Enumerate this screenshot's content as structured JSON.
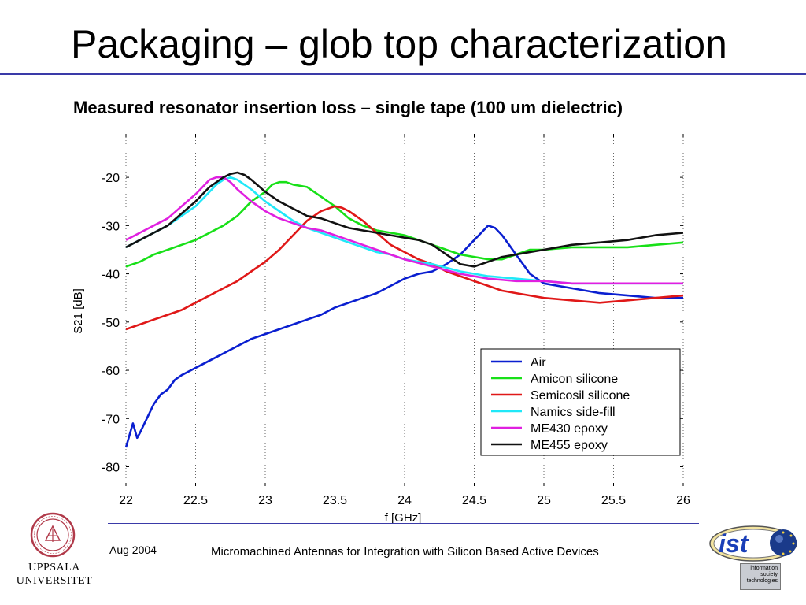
{
  "slide": {
    "title": "Packaging – glob top characterization",
    "subtitle": "Measured resonator insertion loss – single tape (100 um dielectric)",
    "footer_date": "Aug 2004",
    "footer_text": "Micromachined Antennas for Integration with Silicon Based Active Devices",
    "university_line1": "UPPSALA",
    "university_line2": "UNIVERSITET",
    "ist_text": "ist",
    "ist_sub": [
      "information",
      "society",
      "technologies"
    ],
    "accent_color": "#3a3aa8"
  },
  "chart_data": {
    "type": "line",
    "xlabel": "f [GHz]",
    "ylabel": "S21 [dB]",
    "xlim": [
      22,
      26
    ],
    "ylim": [
      -84,
      -11
    ],
    "x_ticks": [
      22,
      22.5,
      23,
      23.5,
      24,
      24.5,
      25,
      25.5,
      26
    ],
    "x_tick_labels": [
      "22",
      "22.5",
      "23",
      "23.5",
      "24",
      "24.5",
      "25",
      "25.5",
      "26"
    ],
    "y_ticks": [
      -20,
      -30,
      -40,
      -50,
      -60,
      -70,
      -80
    ],
    "y_tick_labels": [
      "-20",
      "-30",
      "-40",
      "-50",
      "-60",
      "-70",
      "-80"
    ],
    "grid": true,
    "grid_axis": "x",
    "legend_position": "lower-right",
    "series": [
      {
        "name": "Air",
        "color": "#0a1fd0",
        "x": [
          22,
          22.03,
          22.05,
          22.08,
          22.1,
          22.15,
          22.2,
          22.25,
          22.3,
          22.35,
          22.4,
          22.5,
          22.6,
          22.7,
          22.8,
          22.9,
          23,
          23.1,
          23.2,
          23.3,
          23.4,
          23.5,
          23.6,
          23.7,
          23.8,
          23.9,
          24,
          24.1,
          24.2,
          24.3,
          24.4,
          24.5,
          24.55,
          24.6,
          24.65,
          24.7,
          24.75,
          24.8,
          24.85,
          24.9,
          25,
          25.2,
          25.4,
          25.6,
          25.8,
          26
        ],
        "y": [
          -76,
          -73,
          -71,
          -74,
          -73,
          -70,
          -67,
          -65,
          -64,
          -62,
          -61,
          -59.5,
          -58,
          -56.5,
          -55,
          -53.5,
          -52.5,
          -51.5,
          -50.5,
          -49.5,
          -48.5,
          -47,
          -46,
          -45,
          -44,
          -42.5,
          -41,
          -40,
          -39.5,
          -38,
          -36,
          -33,
          -31.5,
          -30,
          -30.5,
          -32,
          -34,
          -36,
          -38,
          -40,
          -42,
          -43,
          -44,
          -44.5,
          -45,
          -45
        ]
      },
      {
        "name": "Amicon silicone",
        "color": "#18e018",
        "x": [
          22,
          22.1,
          22.2,
          22.3,
          22.4,
          22.5,
          22.6,
          22.7,
          22.8,
          22.9,
          23,
          23.05,
          23.1,
          23.15,
          23.2,
          23.3,
          23.4,
          23.5,
          23.6,
          23.7,
          23.8,
          23.9,
          24,
          24.1,
          24.2,
          24.3,
          24.4,
          24.5,
          24.6,
          24.7,
          24.8,
          24.9,
          25,
          25.2,
          25.4,
          25.6,
          25.8,
          26
        ],
        "y": [
          -38.5,
          -37.5,
          -36,
          -35,
          -34,
          -33,
          -31.5,
          -30,
          -28,
          -25,
          -23,
          -21.5,
          -21,
          -21,
          -21.5,
          -22,
          -24,
          -26,
          -28.5,
          -30,
          -31,
          -31.5,
          -32,
          -33,
          -34,
          -35,
          -36,
          -36.5,
          -37,
          -37,
          -36,
          -35,
          -35,
          -34.5,
          -34.5,
          -34.5,
          -34,
          -33.5
        ]
      },
      {
        "name": "Semicosil silicone",
        "color": "#e01818",
        "x": [
          22,
          22.1,
          22.2,
          22.3,
          22.4,
          22.5,
          22.6,
          22.7,
          22.8,
          22.9,
          23,
          23.1,
          23.2,
          23.3,
          23.4,
          23.5,
          23.55,
          23.6,
          23.7,
          23.8,
          23.9,
          24,
          24.1,
          24.2,
          24.3,
          24.4,
          24.5,
          24.6,
          24.7,
          24.8,
          24.9,
          25,
          25.2,
          25.4,
          25.6,
          25.8,
          26
        ],
        "y": [
          -51.5,
          -50.5,
          -49.5,
          -48.5,
          -47.5,
          -46,
          -44.5,
          -43,
          -41.5,
          -39.5,
          -37.5,
          -35,
          -32,
          -29,
          -27,
          -26,
          -26.3,
          -27,
          -29,
          -31.5,
          -34,
          -35.5,
          -37,
          -38,
          -39.5,
          -40.5,
          -41.5,
          -42.5,
          -43.5,
          -44,
          -44.5,
          -45,
          -45.5,
          -46,
          -45.5,
          -45,
          -44.5
        ]
      },
      {
        "name": "Namics side-fill",
        "color": "#20e8f8",
        "x": [
          22,
          22.1,
          22.2,
          22.3,
          22.4,
          22.5,
          22.55,
          22.6,
          22.65,
          22.7,
          22.75,
          22.8,
          22.9,
          23,
          23.1,
          23.2,
          23.3,
          23.4,
          23.5,
          23.6,
          23.7,
          23.8,
          23.9,
          24,
          24.2,
          24.4,
          24.6,
          24.8,
          25,
          25.2,
          25.4,
          25.6,
          25.8,
          26
        ],
        "y": [
          -34.5,
          -33,
          -31.5,
          -30,
          -28,
          -26,
          -24.5,
          -23,
          -21.5,
          -20.5,
          -20,
          -20.5,
          -22.5,
          -25,
          -27,
          -29,
          -30.5,
          -31.5,
          -32.5,
          -33.5,
          -34.5,
          -35.5,
          -36,
          -37,
          -38,
          -39.5,
          -40.5,
          -41,
          -41.5,
          -42,
          -42,
          -42,
          -42,
          -42
        ]
      },
      {
        "name": "ME430 epoxy",
        "color": "#e020e0",
        "x": [
          22,
          22.1,
          22.2,
          22.3,
          22.4,
          22.5,
          22.55,
          22.6,
          22.65,
          22.7,
          22.75,
          22.8,
          22.9,
          23,
          23.1,
          23.2,
          23.3,
          23.4,
          23.5,
          23.6,
          23.7,
          23.8,
          23.9,
          24,
          24.2,
          24.4,
          24.6,
          24.8,
          25,
          25.2,
          25.4,
          25.6,
          25.8,
          26
        ],
        "y": [
          -33,
          -31.5,
          -30,
          -28.5,
          -26,
          -23.5,
          -22,
          -20.5,
          -20,
          -20,
          -21,
          -22.5,
          -25,
          -27,
          -28.5,
          -29.5,
          -30.5,
          -31,
          -32,
          -33,
          -34,
          -35,
          -36,
          -37,
          -38.5,
          -40,
          -41,
          -41.5,
          -41.5,
          -42,
          -42,
          -42,
          -42,
          -42
        ]
      },
      {
        "name": "ME455 epoxy",
        "color": "#111111",
        "x": [
          22,
          22.1,
          22.2,
          22.3,
          22.4,
          22.5,
          22.6,
          22.7,
          22.75,
          22.8,
          22.85,
          22.9,
          23,
          23.1,
          23.2,
          23.3,
          23.4,
          23.5,
          23.6,
          23.7,
          23.8,
          23.9,
          24,
          24.1,
          24.2,
          24.3,
          24.4,
          24.5,
          24.6,
          24.7,
          24.8,
          24.9,
          25,
          25.2,
          25.4,
          25.6,
          25.8,
          26
        ],
        "y": [
          -34.5,
          -33,
          -31.5,
          -30,
          -27.5,
          -25,
          -22,
          -20,
          -19.3,
          -19,
          -19.5,
          -20.5,
          -23,
          -25,
          -26.5,
          -28,
          -28.5,
          -29.5,
          -30.5,
          -31,
          -31.5,
          -32,
          -32.5,
          -33,
          -34,
          -36,
          -38,
          -38.5,
          -37.5,
          -36.5,
          -36,
          -35.5,
          -35,
          -34,
          -33.5,
          -33,
          -32,
          -31.5
        ]
      }
    ]
  }
}
